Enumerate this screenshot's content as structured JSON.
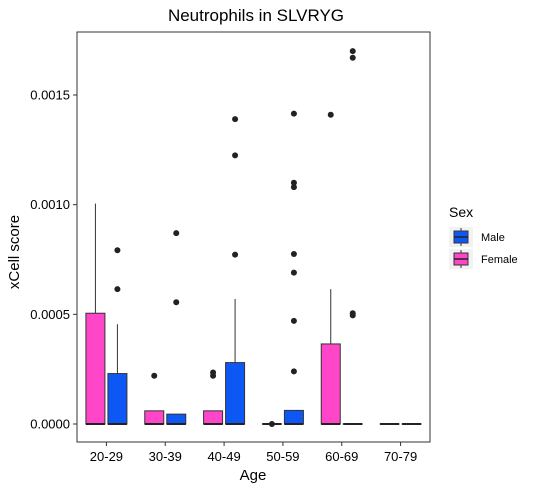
{
  "chart_data": {
    "type": "boxplot",
    "title": "Neutrophils in SLVRYG",
    "xlabel": "Age",
    "ylabel": "xCell score",
    "ylim": [
      -8.45e-05,
      0.0018
    ],
    "grid": false,
    "categories": [
      "20-29",
      "30-39",
      "40-49",
      "50-59",
      "60-69",
      "70-79"
    ],
    "y_ticks": [
      {
        "value": 0.0,
        "label": "0.0000"
      },
      {
        "value": 0.0005,
        "label": "0.0005"
      },
      {
        "value": 0.001,
        "label": "0.0010"
      },
      {
        "value": 0.0015,
        "label": "0.0015"
      }
    ],
    "legend": {
      "title": "Sex",
      "position": "right"
    },
    "series": [
      {
        "name": "Female",
        "color": "#ff45c8",
        "boxes": [
          {
            "category": "20-29",
            "min": 0,
            "q1": 0,
            "median": 0,
            "q3": 0.000505,
            "max": 0.001005,
            "outliers": []
          },
          {
            "category": "30-39",
            "min": 0,
            "q1": 0,
            "median": 0,
            "q3": 6e-05,
            "max": 6e-05,
            "outliers": [
              0.00022
            ]
          },
          {
            "category": "40-49",
            "min": 0,
            "q1": 0,
            "median": 0,
            "q3": 6e-05,
            "max": 6e-05,
            "outliers": [
              0.000235,
              0.00022
            ]
          },
          {
            "category": "50-59",
            "min": 0,
            "q1": 0,
            "median": 0,
            "q3": 0,
            "max": 0,
            "outliers": [
              0.0
            ]
          },
          {
            "category": "60-69",
            "min": 0,
            "q1": 0,
            "median": 0,
            "q3": 0.000365,
            "max": 0.000615,
            "outliers": [
              0.00141
            ]
          },
          {
            "category": "70-79",
            "min": 0,
            "q1": 0,
            "median": 0,
            "q3": 0,
            "max": 0,
            "outliers": []
          }
        ]
      },
      {
        "name": "Male",
        "color": "#0d58f5",
        "boxes": [
          {
            "category": "20-29",
            "min": 0,
            "q1": 0,
            "median": 0,
            "q3": 0.00023,
            "max": 0.000455,
            "outliers": [
              0.000792,
              0.000615
            ]
          },
          {
            "category": "30-39",
            "min": 0,
            "q1": 0,
            "median": 0,
            "q3": 4.5e-05,
            "max": 4.5e-05,
            "outliers": [
              0.00087,
              0.000555
            ]
          },
          {
            "category": "40-49",
            "min": 0,
            "q1": 0,
            "median": 0,
            "q3": 0.00028,
            "max": 0.00057,
            "outliers": [
              0.00139,
              0.001225,
              0.000772
            ]
          },
          {
            "category": "50-59",
            "min": 0,
            "q1": 0,
            "median": 0,
            "q3": 6.2e-05,
            "max": 6.2e-05,
            "outliers": [
              0.001415,
              0.0011,
              0.00108,
              0.000775,
              0.00069,
              0.00047,
              0.00024
            ]
          },
          {
            "category": "60-69",
            "min": 0,
            "q1": 0,
            "median": 0,
            "q3": 0,
            "max": 0,
            "outliers": [
              0.0017,
              0.00167,
              0.000505,
              0.000495
            ]
          },
          {
            "category": "70-79",
            "min": 0,
            "q1": 0,
            "median": 0,
            "q3": 0,
            "max": 0,
            "outliers": []
          }
        ]
      }
    ]
  },
  "legend_items": [
    {
      "label": "Male",
      "color": "#0d58f5"
    },
    {
      "label": "Female",
      "color": "#ff45c8"
    }
  ]
}
